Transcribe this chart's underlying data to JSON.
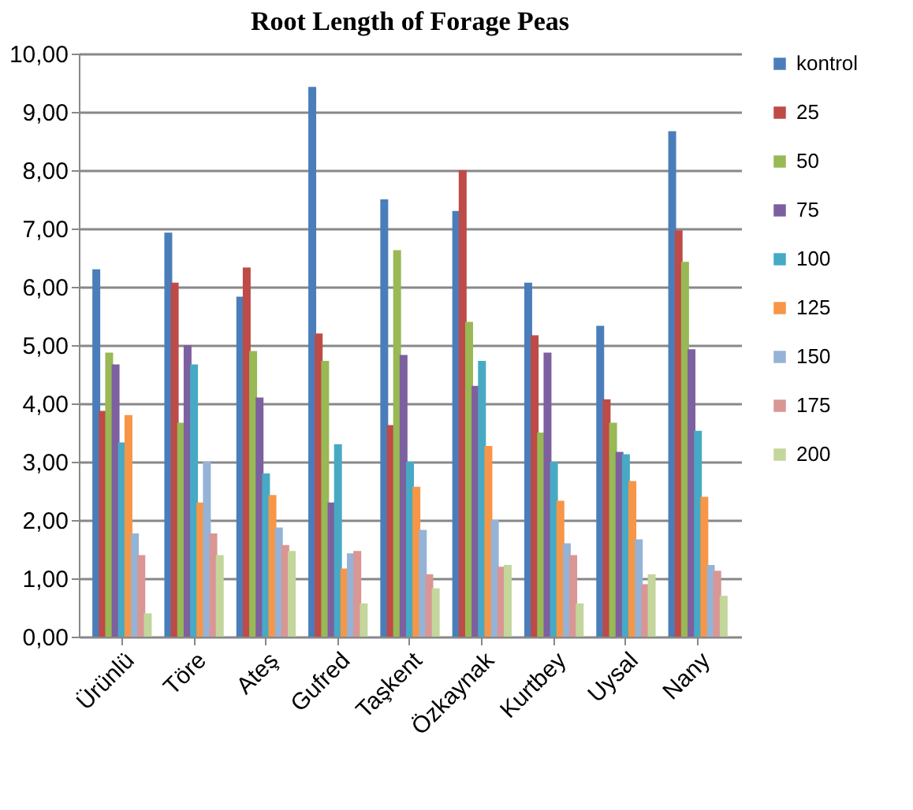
{
  "chart_data": {
    "type": "bar",
    "title": "Root Length of Forage Peas",
    "categories": [
      "Ürünlü",
      "Töre",
      "Ateş",
      "Gufred",
      "Taşkent",
      "Özkaynak",
      "Kurtbey",
      "Uysal",
      "Nany"
    ],
    "series": [
      {
        "name": "kontrol",
        "color": "#4a7ebb",
        "values": [
          6.3,
          6.93,
          5.83,
          9.43,
          7.5,
          7.3,
          6.07,
          5.33,
          8.67
        ]
      },
      {
        "name": "25",
        "color": "#be4b48",
        "values": [
          3.87,
          6.07,
          6.33,
          5.2,
          3.63,
          8.0,
          5.17,
          4.07,
          6.97
        ]
      },
      {
        "name": "50",
        "color": "#98b954",
        "values": [
          4.87,
          3.67,
          4.9,
          4.73,
          6.63,
          5.4,
          3.5,
          3.67,
          6.43
        ]
      },
      {
        "name": "75",
        "color": "#7d60a0",
        "values": [
          4.67,
          5.0,
          4.1,
          2.3,
          4.83,
          4.3,
          4.87,
          3.17,
          4.93
        ]
      },
      {
        "name": "100",
        "color": "#46aac5",
        "values": [
          3.33,
          4.67,
          2.8,
          3.3,
          3.0,
          4.73,
          3.0,
          3.13,
          3.53
        ]
      },
      {
        "name": "125",
        "color": "#f79646",
        "values": [
          3.8,
          2.3,
          2.43,
          1.17,
          2.57,
          3.27,
          2.33,
          2.67,
          2.4
        ]
      },
      {
        "name": "150",
        "color": "#95b3d7",
        "values": [
          1.77,
          3.0,
          1.87,
          1.43,
          1.83,
          2.0,
          1.6,
          1.67,
          1.23
        ]
      },
      {
        "name": "175",
        "color": "#d99694",
        "values": [
          1.4,
          1.77,
          1.57,
          1.47,
          1.07,
          1.2,
          1.4,
          0.9,
          1.13
        ]
      },
      {
        "name": "200",
        "color": "#c3d69b",
        "values": [
          0.4,
          1.4,
          1.47,
          0.57,
          0.83,
          1.23,
          0.57,
          1.07,
          0.7
        ]
      }
    ],
    "ylim": [
      0,
      10
    ],
    "yticks": [
      {
        "value": 0,
        "label": "0,00"
      },
      {
        "value": 1,
        "label": "1,00"
      },
      {
        "value": 2,
        "label": "2,00"
      },
      {
        "value": 3,
        "label": "3,00"
      },
      {
        "value": 4,
        "label": "4,00"
      },
      {
        "value": 5,
        "label": "5,00"
      },
      {
        "value": 6,
        "label": "6,00"
      },
      {
        "value": 7,
        "label": "7,00"
      },
      {
        "value": 8,
        "label": "8,00"
      },
      {
        "value": 9,
        "label": "9,00"
      },
      {
        "value": 10,
        "label": "10,00"
      }
    ],
    "grid": "y",
    "legend": "right"
  }
}
